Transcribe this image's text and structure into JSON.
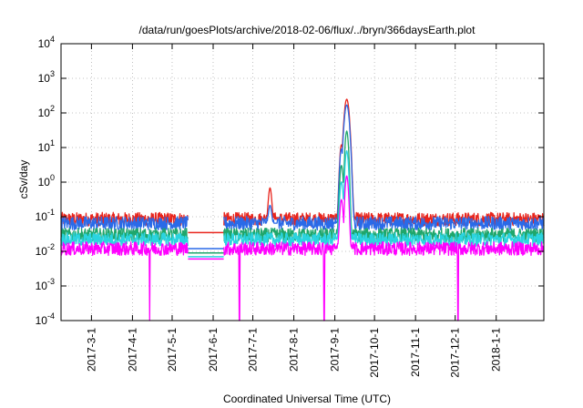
{
  "chart_data": {
    "type": "line",
    "title": "/data/run/goesPlots/archive/2018-02-06/flux/../bryn/366daysEarth.plot",
    "xlabel": "Coordinated Universal Time (UTC)",
    "ylabel": "cSv/day",
    "y_scale": "log",
    "ylim": [
      0.0001,
      10000
    ],
    "xlim": [
      "2017-02-06",
      "2018-02-06"
    ],
    "grid": true,
    "y_ticks": [
      {
        "value": 0.0001,
        "base": "10",
        "exp": "-4"
      },
      {
        "value": 0.001,
        "base": "10",
        "exp": "-3"
      },
      {
        "value": 0.01,
        "base": "10",
        "exp": "-2"
      },
      {
        "value": 0.1,
        "base": "10",
        "exp": "-1"
      },
      {
        "value": 1,
        "base": "10",
        "exp": "0"
      },
      {
        "value": 10,
        "base": "10",
        "exp": "1"
      },
      {
        "value": 100,
        "base": "10",
        "exp": "2"
      },
      {
        "value": 1000,
        "base": "10",
        "exp": "3"
      },
      {
        "value": 10000,
        "base": "10",
        "exp": "4"
      }
    ],
    "x_ticks": [
      "2017-3-1",
      "2017-4-1",
      "2017-5-1",
      "2017-6-1",
      "2017-7-1",
      "2017-8-1",
      "2017-9-1",
      "2017-10-1",
      "2017-11-1",
      "2017-12-1",
      "2018-1-1"
    ],
    "data_gap": [
      "2017-05-13",
      "2017-06-09"
    ],
    "gap_levels": [
      0.035,
      0.012,
      0.009,
      0.007,
      0.006
    ],
    "series": [
      {
        "color": "#e8241c",
        "baseline": 0.085,
        "events": [
          {
            "date": "2017-07-14",
            "peak": 0.6
          },
          {
            "date": "2017-09-06",
            "peak": 12
          },
          {
            "date": "2017-09-10",
            "peak": 250
          }
        ]
      },
      {
        "color": "#2a6ae8",
        "baseline": 0.065,
        "events": [
          {
            "date": "2017-07-14",
            "peak": 0.15
          },
          {
            "date": "2017-09-06",
            "peak": 9
          },
          {
            "date": "2017-09-10",
            "peak": 170
          }
        ]
      },
      {
        "color": "#1fa66b",
        "baseline": 0.03,
        "events": [
          {
            "date": "2017-09-06",
            "peak": 3
          },
          {
            "date": "2017-09-10",
            "peak": 30
          }
        ]
      },
      {
        "color": "#2bd4e0",
        "baseline": 0.022,
        "events": [
          {
            "date": "2017-09-06",
            "peak": 1
          },
          {
            "date": "2017-09-10",
            "peak": 8
          }
        ]
      },
      {
        "color": "#ff00ff",
        "baseline": 0.012,
        "events": [
          {
            "date": "2017-09-06",
            "peak": 0.3
          },
          {
            "date": "2017-09-10",
            "peak": 1.5
          }
        ]
      }
    ],
    "dropouts": [
      "2017-04-14",
      "2017-06-21",
      "2017-08-24",
      "2017-12-03"
    ]
  }
}
